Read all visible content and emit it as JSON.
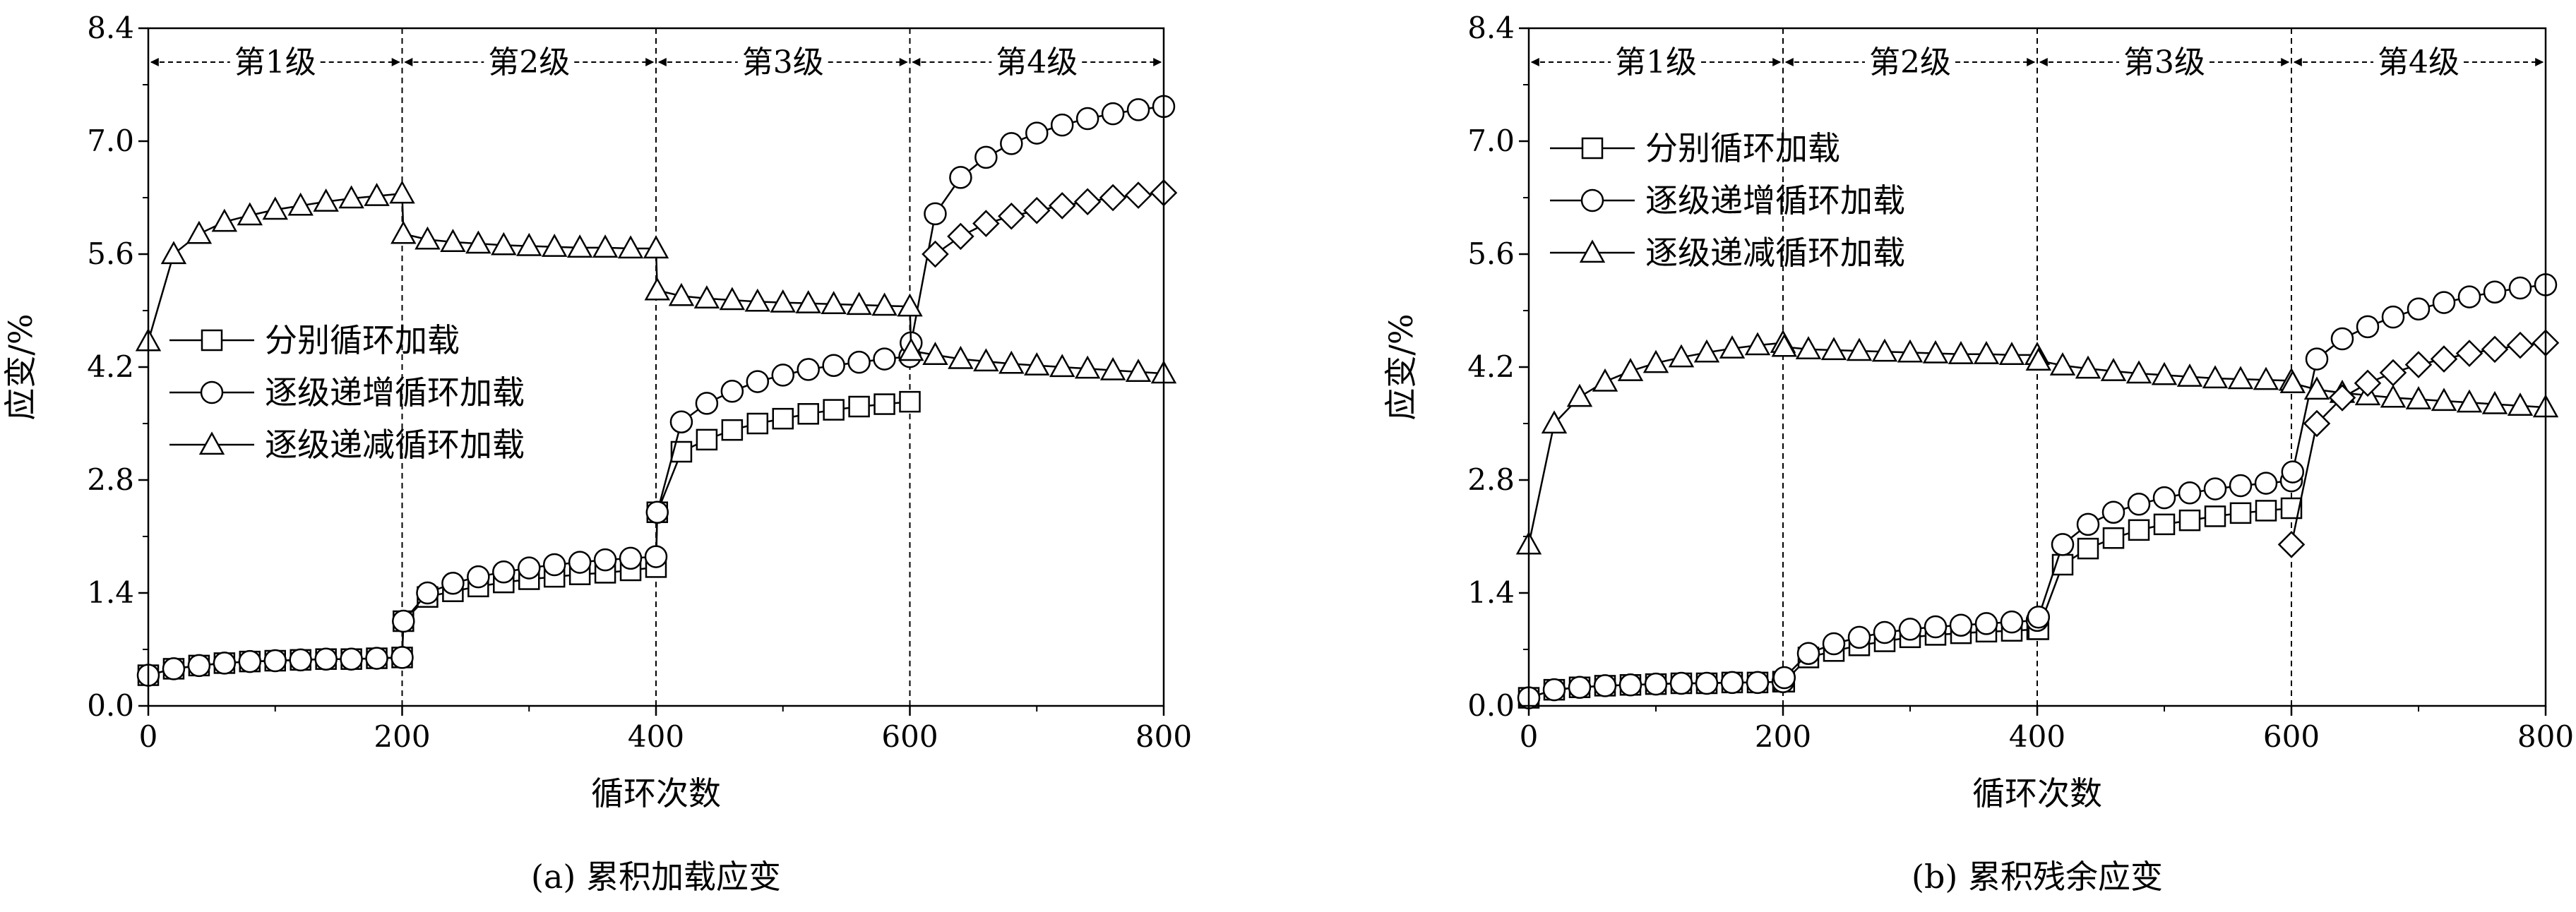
{
  "figure": {
    "panels": [
      "panel_a",
      "panel_b"
    ]
  },
  "legend_labels": {
    "separate": "分别循环加载",
    "increasing": "逐级递增循环加载",
    "decreasing": "逐级递减循环加载"
  },
  "stage_labels": [
    "第1级",
    "第2级",
    "第3级",
    "第4级"
  ],
  "chart_data": [
    {
      "id": "panel_a",
      "type": "line",
      "caption": "(a) 累积加载应变",
      "xlabel": "循环次数",
      "ylabel": "应变/%",
      "xlim": [
        0,
        800
      ],
      "ylim": [
        0,
        8.4
      ],
      "xticks": [
        0,
        200,
        400,
        600,
        800
      ],
      "yticks": [
        0.0,
        1.4,
        2.8,
        4.2,
        5.6,
        7.0,
        8.4
      ],
      "stage_boundaries": [
        0,
        200,
        400,
        600,
        800
      ],
      "legend_position": "center-left",
      "series": [
        {
          "name": "分别循环加载",
          "marker": "square",
          "x": [
            0,
            20,
            40,
            60,
            80,
            100,
            120,
            140,
            160,
            180,
            200,
            201,
            220,
            240,
            260,
            280,
            300,
            320,
            340,
            360,
            380,
            400,
            401,
            420,
            440,
            460,
            480,
            500,
            520,
            540,
            560,
            580,
            600
          ],
          "y": [
            0.38,
            0.46,
            0.5,
            0.53,
            0.55,
            0.56,
            0.57,
            0.58,
            0.58,
            0.59,
            0.6,
            1.05,
            1.35,
            1.42,
            1.48,
            1.53,
            1.57,
            1.6,
            1.63,
            1.65,
            1.68,
            1.72,
            2.4,
            3.15,
            3.3,
            3.42,
            3.5,
            3.56,
            3.62,
            3.67,
            3.71,
            3.74,
            3.77
          ]
        },
        {
          "name": "逐级递增循环加载",
          "marker": "circle",
          "x": [
            0,
            20,
            40,
            60,
            80,
            100,
            120,
            140,
            160,
            180,
            200,
            201,
            220,
            240,
            260,
            280,
            300,
            320,
            340,
            360,
            380,
            400,
            401,
            420,
            440,
            460,
            480,
            500,
            520,
            540,
            560,
            580,
            600,
            601,
            620,
            640,
            660,
            680,
            700,
            720,
            740,
            760,
            780,
            800
          ],
          "y": [
            0.38,
            0.46,
            0.5,
            0.53,
            0.55,
            0.56,
            0.57,
            0.58,
            0.58,
            0.59,
            0.6,
            1.05,
            1.4,
            1.52,
            1.6,
            1.66,
            1.71,
            1.75,
            1.78,
            1.81,
            1.83,
            1.85,
            2.4,
            3.52,
            3.75,
            3.9,
            4.02,
            4.1,
            4.17,
            4.22,
            4.26,
            4.3,
            4.33,
            4.5,
            6.1,
            6.55,
            6.8,
            6.97,
            7.1,
            7.2,
            7.28,
            7.34,
            7.39,
            7.43
          ]
        },
        {
          "name": "逐级递减循环加载",
          "marker": "triangle",
          "x": [
            0,
            20,
            40,
            60,
            80,
            100,
            120,
            140,
            160,
            180,
            200,
            201,
            220,
            240,
            260,
            280,
            300,
            320,
            340,
            360,
            380,
            400,
            401,
            420,
            440,
            460,
            480,
            500,
            520,
            540,
            560,
            580,
            600,
            601,
            620,
            640,
            660,
            680,
            700,
            720,
            740,
            760,
            780,
            800
          ],
          "y": [
            4.52,
            5.6,
            5.85,
            6.0,
            6.08,
            6.15,
            6.2,
            6.25,
            6.29,
            6.32,
            6.35,
            5.85,
            5.78,
            5.75,
            5.73,
            5.71,
            5.7,
            5.69,
            5.68,
            5.68,
            5.67,
            5.67,
            5.15,
            5.08,
            5.05,
            5.03,
            5.01,
            5.0,
            4.99,
            4.98,
            4.97,
            4.96,
            4.95,
            4.4,
            4.35,
            4.3,
            4.27,
            4.24,
            4.22,
            4.2,
            4.18,
            4.16,
            4.14,
            4.12
          ]
        },
        {
          "name": "",
          "marker": "diamond",
          "x": [
            620,
            640,
            660,
            680,
            700,
            720,
            740,
            760,
            780,
            800
          ],
          "y": [
            5.6,
            5.82,
            5.98,
            6.07,
            6.14,
            6.2,
            6.25,
            6.3,
            6.33,
            6.36
          ]
        }
      ]
    },
    {
      "id": "panel_b",
      "type": "line",
      "caption": "(b) 累积残余应变",
      "xlabel": "循环次数",
      "ylabel": "应变/%",
      "xlim": [
        0,
        800
      ],
      "ylim": [
        0,
        8.4
      ],
      "xticks": [
        0,
        200,
        400,
        600,
        800
      ],
      "yticks": [
        0.0,
        1.4,
        2.8,
        4.2,
        5.6,
        7.0,
        8.4
      ],
      "stage_boundaries": [
        0,
        200,
        400,
        600,
        800
      ],
      "legend_position": "upper-left",
      "series": [
        {
          "name": "分别循环加载",
          "marker": "square",
          "x": [
            0,
            20,
            40,
            60,
            80,
            100,
            120,
            140,
            160,
            180,
            200,
            201,
            220,
            240,
            260,
            280,
            300,
            320,
            340,
            360,
            380,
            400,
            401,
            420,
            440,
            460,
            480,
            500,
            520,
            540,
            560,
            580,
            600
          ],
          "y": [
            0.1,
            0.2,
            0.23,
            0.25,
            0.26,
            0.27,
            0.28,
            0.28,
            0.29,
            0.29,
            0.3,
            0.3,
            0.6,
            0.68,
            0.75,
            0.8,
            0.85,
            0.88,
            0.9,
            0.92,
            0.93,
            0.95,
            0.95,
            1.75,
            1.95,
            2.08,
            2.18,
            2.25,
            2.3,
            2.35,
            2.39,
            2.42,
            2.45
          ]
        },
        {
          "name": "逐级递增循环加载",
          "marker": "circle",
          "x": [
            0,
            20,
            40,
            60,
            80,
            100,
            120,
            140,
            160,
            180,
            200,
            201,
            220,
            240,
            260,
            280,
            300,
            320,
            340,
            360,
            380,
            400,
            401,
            420,
            440,
            460,
            480,
            500,
            520,
            540,
            560,
            580,
            600,
            601,
            620,
            640,
            660,
            680,
            700,
            720,
            740,
            760,
            780,
            800
          ],
          "y": [
            0.1,
            0.2,
            0.23,
            0.25,
            0.26,
            0.27,
            0.28,
            0.28,
            0.29,
            0.29,
            0.3,
            0.35,
            0.65,
            0.77,
            0.85,
            0.91,
            0.95,
            0.98,
            1.0,
            1.02,
            1.04,
            1.06,
            1.1,
            2.0,
            2.25,
            2.4,
            2.5,
            2.58,
            2.64,
            2.69,
            2.73,
            2.76,
            2.79,
            2.9,
            4.3,
            4.55,
            4.7,
            4.82,
            4.92,
            5.0,
            5.07,
            5.13,
            5.18,
            5.22
          ]
        },
        {
          "name": "逐级递减循环加载",
          "marker": "triangle",
          "x": [
            0,
            20,
            40,
            60,
            80,
            100,
            120,
            140,
            160,
            180,
            200,
            201,
            220,
            240,
            260,
            280,
            300,
            320,
            340,
            360,
            380,
            400,
            401,
            420,
            440,
            460,
            480,
            500,
            520,
            540,
            560,
            580,
            600,
            601,
            620,
            640,
            660,
            680,
            700,
            720,
            740,
            760,
            780,
            800
          ],
          "y": [
            2.0,
            3.5,
            3.83,
            4.02,
            4.15,
            4.25,
            4.32,
            4.38,
            4.43,
            4.47,
            4.5,
            4.45,
            4.42,
            4.41,
            4.4,
            4.39,
            4.38,
            4.37,
            4.36,
            4.36,
            4.35,
            4.35,
            4.28,
            4.22,
            4.18,
            4.15,
            4.12,
            4.1,
            4.08,
            4.06,
            4.05,
            4.04,
            4.03,
            4.0,
            3.92,
            3.88,
            3.85,
            3.82,
            3.8,
            3.78,
            3.76,
            3.74,
            3.72,
            3.7
          ]
        },
        {
          "name": "",
          "marker": "diamond",
          "x": [
            600,
            620,
            640,
            660,
            680,
            700,
            720,
            740,
            760,
            780,
            800
          ],
          "y": [
            2.0,
            3.5,
            3.82,
            4.0,
            4.13,
            4.23,
            4.3,
            4.37,
            4.42,
            4.47,
            4.5
          ]
        }
      ]
    }
  ]
}
